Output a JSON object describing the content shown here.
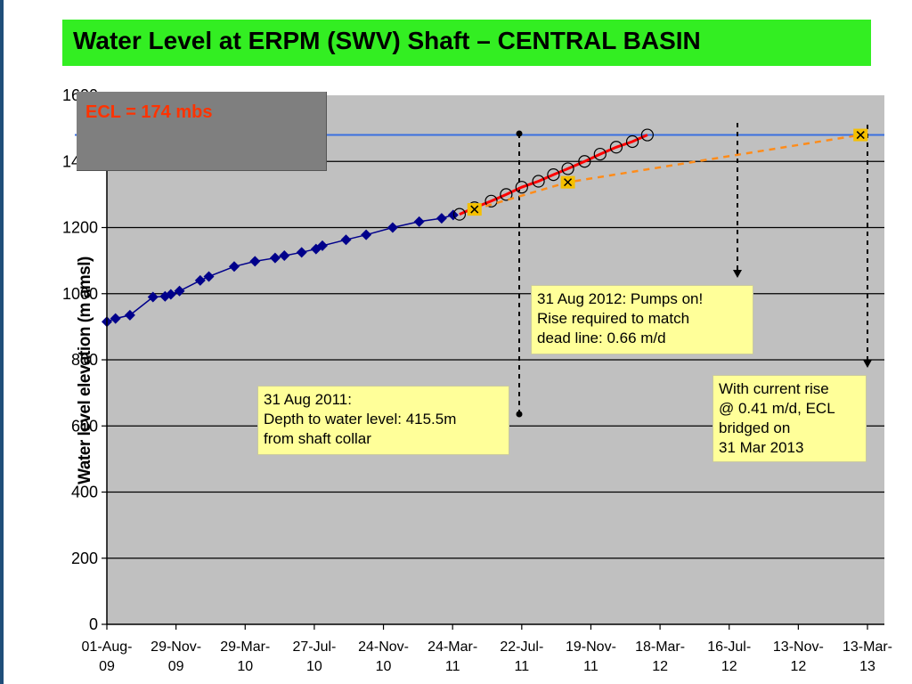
{
  "title": "Water Level at ERPM (SWV) Shaft – CENTRAL BASIN",
  "ecl_label": "ECL = 174 mbs",
  "notes": {
    "aug2011": "31 Aug 2011:\nDepth to water level: 415.5m\nfrom shaft collar",
    "aug2012": "31 Aug 2012: Pumps on!\nRise required to match\ndead line: 0.66 m/d",
    "mar2013": "With current rise\n@ 0.41 m/d, ECL\nbridged on\n31 Mar 2013"
  },
  "colors": {
    "plot_background": "#c0c0c0",
    "observed_series": "#00008b",
    "required_rise": "#ff0000",
    "current_rise": "#ff8c1a",
    "ecl_line": "#3a6fe0",
    "title_background": "#33ee22"
  },
  "chart_data": {
    "type": "line",
    "ylabel": "Water level elevation (m amsl)",
    "xlabel": "",
    "ylim": [
      0,
      1600
    ],
    "yticks": [
      0,
      200,
      400,
      600,
      800,
      1000,
      1200,
      1400,
      1600
    ],
    "xlim": [
      "2009-08-01",
      "2013-03-13"
    ],
    "xticks": [
      {
        "date": "2009-08-01",
        "label": [
          "01-Aug-",
          "09"
        ]
      },
      {
        "date": "2009-11-29",
        "label": [
          "29-Nov-",
          "09"
        ]
      },
      {
        "date": "2010-03-29",
        "label": [
          "29-Mar-",
          "10"
        ]
      },
      {
        "date": "2010-07-27",
        "label": [
          "27-Jul-",
          "10"
        ]
      },
      {
        "date": "2010-11-24",
        "label": [
          "24-Nov-",
          "10"
        ]
      },
      {
        "date": "2011-03-24",
        "label": [
          "24-Mar-",
          "11"
        ]
      },
      {
        "date": "2011-07-22",
        "label": [
          "22-Jul-",
          "11"
        ]
      },
      {
        "date": "2011-11-19",
        "label": [
          "19-Nov-",
          "11"
        ]
      },
      {
        "date": "2012-03-18",
        "label": [
          "18-Mar-",
          "12"
        ]
      },
      {
        "date": "2012-07-16",
        "label": [
          "16-Jul-",
          "12"
        ]
      },
      {
        "date": "2012-11-13",
        "label": [
          "13-Nov-",
          "12"
        ]
      },
      {
        "date": "2013-03-13",
        "label": [
          "13-Mar-",
          "13"
        ]
      }
    ],
    "grid": "horizontal",
    "ecl_elevation": 1480,
    "series": [
      {
        "style": "diamond-line",
        "points": [
          {
            "x": "2009-08-01",
            "y": 915
          },
          {
            "x": "2009-08-16",
            "y": 925
          },
          {
            "x": "2009-09-10",
            "y": 935
          },
          {
            "x": "2009-10-20",
            "y": 990
          },
          {
            "x": "2009-11-10",
            "y": 992
          },
          {
            "x": "2009-11-20",
            "y": 998
          },
          {
            "x": "2009-12-05",
            "y": 1008
          },
          {
            "x": "2010-01-10",
            "y": 1040
          },
          {
            "x": "2010-01-25",
            "y": 1052
          },
          {
            "x": "2010-03-10",
            "y": 1082
          },
          {
            "x": "2010-04-15",
            "y": 1098
          },
          {
            "x": "2010-05-20",
            "y": 1108
          },
          {
            "x": "2010-06-05",
            "y": 1115
          },
          {
            "x": "2010-07-05",
            "y": 1125
          },
          {
            "x": "2010-07-30",
            "y": 1135
          },
          {
            "x": "2010-08-10",
            "y": 1145
          },
          {
            "x": "2010-09-20",
            "y": 1163
          },
          {
            "x": "2010-10-25",
            "y": 1178
          },
          {
            "x": "2010-12-10",
            "y": 1200
          },
          {
            "x": "2011-01-25",
            "y": 1218
          },
          {
            "x": "2011-03-05",
            "y": 1228
          },
          {
            "x": "2011-03-25",
            "y": 1238
          }
        ]
      },
      {
        "style": "circle-red-line",
        "points": [
          {
            "x": "2011-04-05",
            "y": 1240
          },
          {
            "x": "2011-05-01",
            "y": 1260
          },
          {
            "x": "2011-05-30",
            "y": 1280
          },
          {
            "x": "2011-06-25",
            "y": 1300
          },
          {
            "x": "2011-07-22",
            "y": 1322
          },
          {
            "x": "2011-08-20",
            "y": 1340
          },
          {
            "x": "2011-09-15",
            "y": 1360
          },
          {
            "x": "2011-10-10",
            "y": 1378
          },
          {
            "x": "2011-11-08",
            "y": 1400
          },
          {
            "x": "2011-12-05",
            "y": 1422
          },
          {
            "x": "2012-01-02",
            "y": 1443
          },
          {
            "x": "2012-01-30",
            "y": 1460
          },
          {
            "x": "2012-02-25",
            "y": 1480
          }
        ]
      },
      {
        "style": "x-orange-dashed",
        "points": [
          {
            "x": "2011-05-01",
            "y": 1255
          },
          {
            "x": "2011-10-10",
            "y": 1337
          },
          {
            "x": "2013-03-01",
            "y": 1480
          }
        ]
      }
    ]
  }
}
